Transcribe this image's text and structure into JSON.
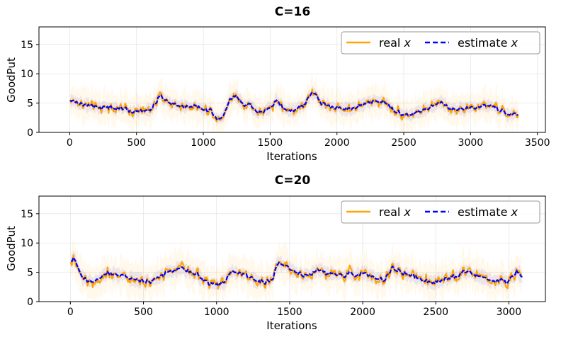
{
  "chart_data": [
    {
      "type": "line",
      "title": "C=16",
      "xlabel": "Iterations",
      "ylabel": "GoodPut",
      "xlim": [
        -230,
        3560
      ],
      "ylim": [
        0,
        18
      ],
      "xticks": [
        0,
        500,
        1000,
        1500,
        2000,
        2500,
        3000,
        3500
      ],
      "yticks": [
        0,
        5,
        10,
        15
      ],
      "grid": true,
      "legend_position": "top-right",
      "legend_columns": 2,
      "n_points": 3360,
      "series": [
        {
          "name": "real",
          "name_var": "x",
          "color": "#ffa500",
          "style": "solid",
          "band_color": "#ffa500",
          "anchors_x": [
            0,
            100,
            200,
            300,
            400,
            500,
            600,
            680,
            750,
            850,
            950,
            1000,
            1050,
            1110,
            1150,
            1200,
            1250,
            1300,
            1350,
            1400,
            1450,
            1500,
            1550,
            1600,
            1650,
            1700,
            1750,
            1800,
            1830,
            1880,
            1950,
            2000,
            2100,
            2200,
            2280,
            2350,
            2420,
            2450,
            2500,
            2550,
            2600,
            2700,
            2780,
            2850,
            2950,
            3050,
            3150,
            3250,
            3300,
            3360
          ],
          "anchors_y": [
            5.5,
            4.8,
            4.2,
            4.4,
            4.0,
            3.5,
            3.8,
            6.2,
            5.0,
            4.4,
            4.6,
            3.8,
            4.0,
            2.2,
            3.0,
            5.8,
            6.2,
            4.8,
            4.8,
            3.5,
            3.4,
            4.2,
            5.6,
            4.0,
            3.6,
            4.2,
            4.6,
            6.3,
            6.8,
            5.0,
            4.4,
            4.2,
            4.0,
            4.8,
            5.4,
            5.2,
            4.0,
            3.4,
            3.2,
            3.0,
            3.4,
            4.2,
            5.2,
            4.0,
            4.1,
            4.3,
            4.6,
            3.4,
            3.0,
            3.2
          ],
          "band_halfwidth": 2.4,
          "noise_amplitude": 1.1
        },
        {
          "name": "estimate",
          "name_var": "x",
          "color": "#0000ff",
          "style": "dashed",
          "anchors_x": [
            0,
            100,
            200,
            300,
            400,
            500,
            600,
            680,
            750,
            850,
            950,
            1000,
            1050,
            1110,
            1150,
            1200,
            1250,
            1300,
            1350,
            1400,
            1450,
            1500,
            1550,
            1600,
            1650,
            1700,
            1750,
            1800,
            1830,
            1880,
            1950,
            2000,
            2100,
            2200,
            2280,
            2350,
            2420,
            2450,
            2500,
            2550,
            2600,
            2700,
            2780,
            2850,
            2950,
            3050,
            3150,
            3250,
            3300,
            3360
          ],
          "anchors_y": [
            5.5,
            4.8,
            4.2,
            4.4,
            4.0,
            3.5,
            3.8,
            6.2,
            5.0,
            4.4,
            4.6,
            3.8,
            4.0,
            2.2,
            3.0,
            5.8,
            6.2,
            4.8,
            4.8,
            3.5,
            3.4,
            4.2,
            5.6,
            4.0,
            3.6,
            4.2,
            4.6,
            6.3,
            6.8,
            5.0,
            4.4,
            4.2,
            4.0,
            4.8,
            5.4,
            5.2,
            4.0,
            3.4,
            3.2,
            3.0,
            3.4,
            4.2,
            5.2,
            4.0,
            4.1,
            4.3,
            4.6,
            3.4,
            3.0,
            3.2
          ],
          "band_halfwidth": 0.9,
          "noise_amplitude": 0.45
        }
      ]
    },
    {
      "type": "line",
      "title": "C=20",
      "xlabel": "Iterations",
      "ylabel": "GoodPut",
      "xlim": [
        -215,
        3250
      ],
      "ylim": [
        0,
        18
      ],
      "xticks": [
        0,
        500,
        1000,
        1500,
        2000,
        2500,
        3000
      ],
      "yticks": [
        0,
        5,
        10,
        15
      ],
      "grid": true,
      "legend_position": "top-right",
      "legend_columns": 2,
      "n_points": 3090,
      "series": [
        {
          "name": "real",
          "name_var": "x",
          "color": "#ffa500",
          "style": "solid",
          "band_color": "#ffa500",
          "anchors_x": [
            0,
            30,
            80,
            150,
            250,
            350,
            450,
            550,
            650,
            750,
            850,
            950,
            1000,
            1050,
            1100,
            1200,
            1300,
            1380,
            1420,
            1500,
            1600,
            1700,
            1800,
            1900,
            2000,
            2100,
            2150,
            2200,
            2250,
            2300,
            2400,
            2500,
            2600,
            2700,
            2800,
            2900,
            3000,
            3050,
            3090
          ],
          "anchors_y": [
            7.0,
            7.5,
            4.0,
            3.5,
            5.0,
            4.5,
            3.8,
            3.5,
            4.8,
            5.5,
            4.8,
            3.0,
            2.8,
            3.2,
            5.2,
            4.5,
            3.4,
            3.6,
            6.6,
            5.8,
            4.4,
            5.4,
            4.6,
            4.5,
            4.8,
            4.2,
            3.6,
            5.8,
            5.2,
            4.8,
            3.6,
            3.2,
            4.0,
            5.2,
            4.2,
            3.6,
            3.6,
            5.2,
            4.0
          ],
          "band_halfwidth": 2.6,
          "noise_amplitude": 1.3
        },
        {
          "name": "estimate",
          "name_var": "x",
          "color": "#0000ff",
          "style": "dashed",
          "anchors_x": [
            0,
            30,
            80,
            150,
            250,
            350,
            450,
            550,
            650,
            750,
            850,
            950,
            1000,
            1050,
            1100,
            1200,
            1300,
            1380,
            1420,
            1500,
            1600,
            1700,
            1800,
            1900,
            2000,
            2100,
            2150,
            2200,
            2250,
            2300,
            2400,
            2500,
            2600,
            2700,
            2800,
            2900,
            3000,
            3050,
            3090
          ],
          "anchors_y": [
            7.0,
            7.5,
            4.0,
            3.5,
            5.0,
            4.5,
            3.8,
            3.5,
            4.8,
            5.5,
            4.8,
            3.0,
            2.8,
            3.2,
            5.2,
            4.5,
            3.4,
            3.6,
            6.6,
            5.8,
            4.4,
            5.4,
            4.6,
            4.5,
            4.8,
            4.2,
            3.6,
            5.8,
            5.2,
            4.8,
            3.6,
            3.2,
            4.0,
            5.2,
            4.2,
            3.6,
            3.6,
            5.2,
            4.0
          ],
          "band_halfwidth": 1.0,
          "noise_amplitude": 0.5
        }
      ]
    }
  ]
}
